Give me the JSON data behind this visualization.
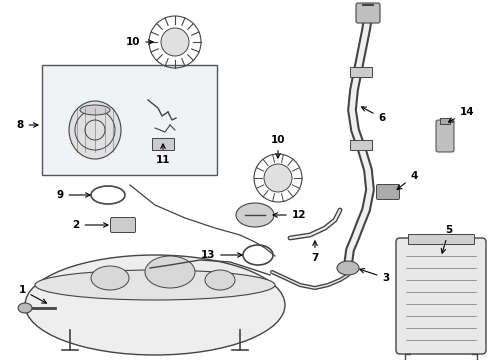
{
  "bg_color": "#ffffff",
  "dc": "#444444",
  "lc": "#000000",
  "fig_width": 4.9,
  "fig_height": 3.6,
  "dpi": 100,
  "box_fill": "#f0f2f5",
  "box_edge": "#555555"
}
